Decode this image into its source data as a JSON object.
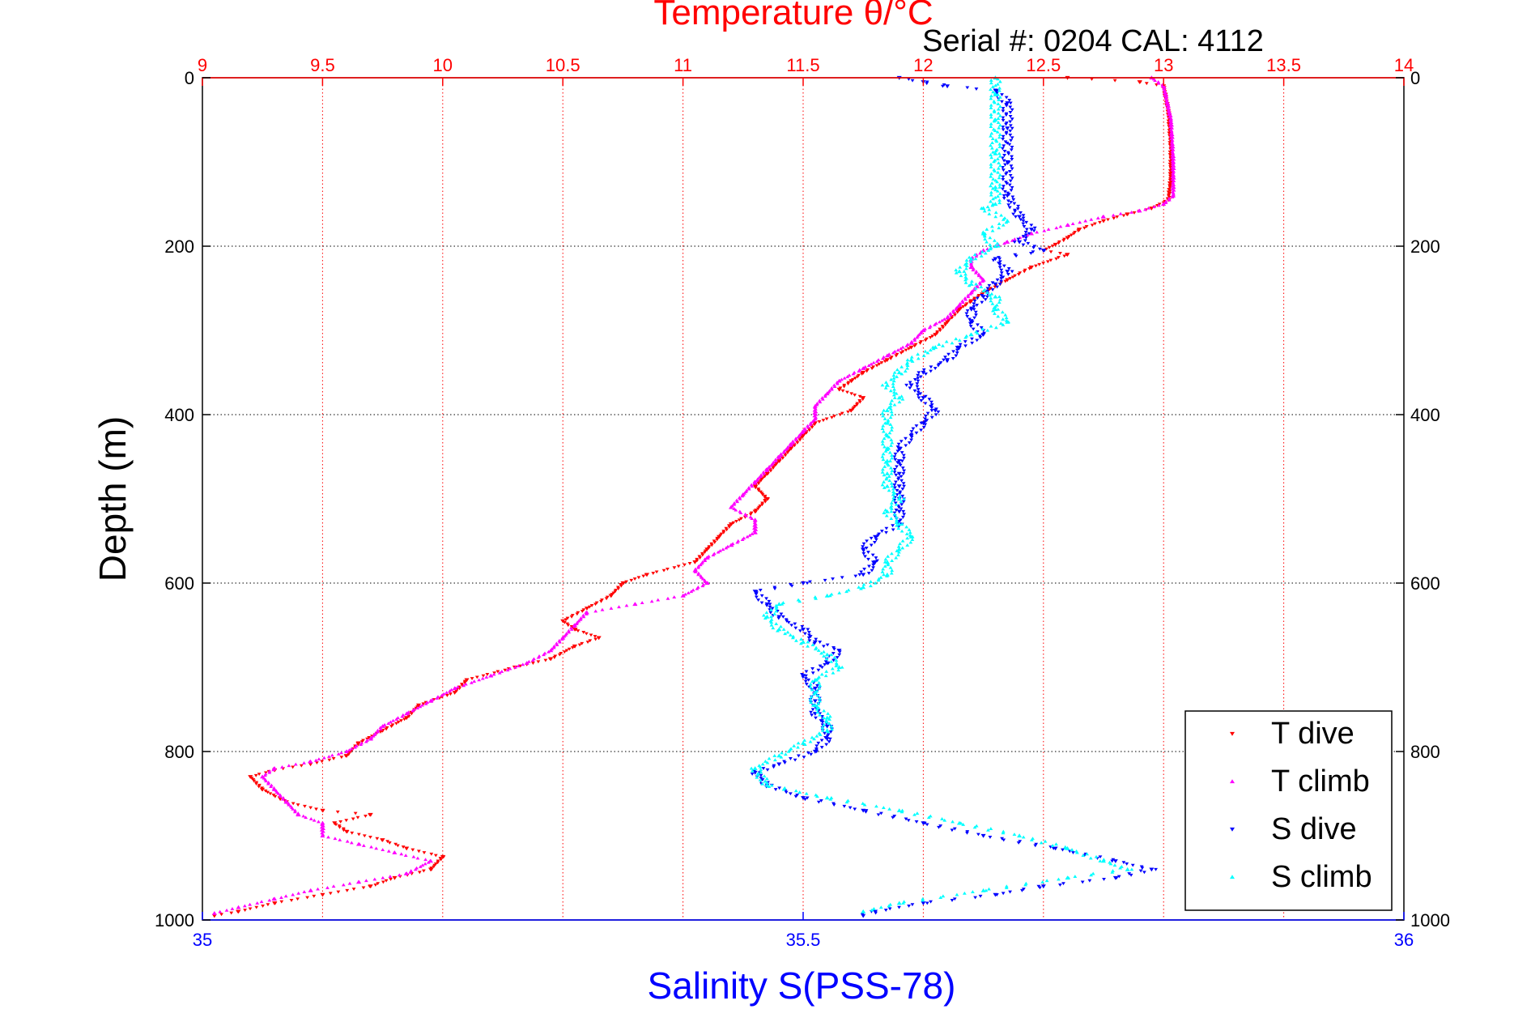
{
  "chart_data": {
    "type": "scatter",
    "title": "Temperature θ/°C",
    "subtitle": "Serial #: 0204  CAL: 4112",
    "ylabel": "Depth (m)",
    "xlabel_bottom": "Salinity S(PSS-78)",
    "ylim": [
      1000,
      0
    ],
    "y_reversed": true,
    "y_ticks": [
      0,
      200,
      400,
      600,
      800,
      1000
    ],
    "x_top": {
      "label": "Temperature θ/°C",
      "lim": [
        9,
        14
      ],
      "ticks": [
        9,
        9.5,
        10,
        10.5,
        11,
        11.5,
        12,
        12.5,
        13,
        13.5,
        14
      ],
      "color": "#ff0000"
    },
    "x_bottom": {
      "label": "Salinity S(PSS-78)",
      "lim": [
        35,
        36
      ],
      "ticks": [
        35,
        35.5,
        36
      ],
      "color": "#0000ff"
    },
    "grid": true,
    "legend_position": "bottom-right",
    "series": [
      {
        "name": "T dive",
        "axis": "temperature",
        "color": "#ff0000",
        "marker": "triangle-down",
        "points": [
          [
            12.6,
            0
          ],
          [
            12.9,
            5
          ],
          [
            13.0,
            10
          ],
          [
            13.02,
            40
          ],
          [
            13.03,
            80
          ],
          [
            13.03,
            120
          ],
          [
            13.02,
            145
          ],
          [
            12.95,
            155
          ],
          [
            12.85,
            162
          ],
          [
            12.75,
            170
          ],
          [
            12.65,
            180
          ],
          [
            12.6,
            190
          ],
          [
            12.55,
            198
          ],
          [
            12.5,
            205
          ],
          [
            12.6,
            210
          ],
          [
            12.45,
            225
          ],
          [
            12.35,
            240
          ],
          [
            12.25,
            255
          ],
          [
            12.2,
            265
          ],
          [
            12.15,
            275
          ],
          [
            12.1,
            290
          ],
          [
            12.05,
            305
          ],
          [
            11.95,
            320
          ],
          [
            11.85,
            335
          ],
          [
            11.75,
            350
          ],
          [
            11.7,
            360
          ],
          [
            11.65,
            370
          ],
          [
            11.75,
            380
          ],
          [
            11.7,
            395
          ],
          [
            11.55,
            410
          ],
          [
            11.5,
            425
          ],
          [
            11.45,
            440
          ],
          [
            11.4,
            455
          ],
          [
            11.35,
            470
          ],
          [
            11.3,
            485
          ],
          [
            11.35,
            500
          ],
          [
            11.3,
            515
          ],
          [
            11.2,
            530
          ],
          [
            11.15,
            545
          ],
          [
            11.1,
            560
          ],
          [
            11.05,
            575
          ],
          [
            10.85,
            590
          ],
          [
            10.75,
            600
          ],
          [
            10.7,
            615
          ],
          [
            10.6,
            630
          ],
          [
            10.5,
            645
          ],
          [
            10.55,
            655
          ],
          [
            10.65,
            665
          ],
          [
            10.55,
            675
          ],
          [
            10.45,
            690
          ],
          [
            10.3,
            700
          ],
          [
            10.1,
            715
          ],
          [
            10.05,
            730
          ],
          [
            9.9,
            745
          ],
          [
            9.85,
            760
          ],
          [
            9.75,
            775
          ],
          [
            9.65,
            790
          ],
          [
            9.6,
            805
          ],
          [
            9.45,
            815
          ],
          [
            9.3,
            822
          ],
          [
            9.2,
            830
          ],
          [
            9.25,
            845
          ],
          [
            9.35,
            860
          ],
          [
            9.5,
            870
          ],
          [
            9.7,
            875
          ],
          [
            9.55,
            885
          ],
          [
            9.6,
            895
          ],
          [
            9.75,
            905
          ],
          [
            9.85,
            915
          ],
          [
            10.0,
            925
          ],
          [
            9.95,
            940
          ],
          [
            9.8,
            950
          ],
          [
            9.7,
            960
          ],
          [
            9.5,
            970
          ],
          [
            9.3,
            980
          ],
          [
            9.15,
            990
          ],
          [
            9.05,
            995
          ]
        ]
      },
      {
        "name": "T climb",
        "axis": "temperature",
        "color": "#ff00ff",
        "marker": "triangle-up",
        "points": [
          [
            12.95,
            0
          ],
          [
            13.0,
            10
          ],
          [
            13.03,
            50
          ],
          [
            13.04,
            100
          ],
          [
            13.04,
            140
          ],
          [
            13.0,
            150
          ],
          [
            12.9,
            158
          ],
          [
            12.75,
            165
          ],
          [
            12.6,
            175
          ],
          [
            12.45,
            185
          ],
          [
            12.35,
            195
          ],
          [
            12.25,
            205
          ],
          [
            12.2,
            215
          ],
          [
            12.2,
            225
          ],
          [
            12.25,
            240
          ],
          [
            12.2,
            255
          ],
          [
            12.15,
            270
          ],
          [
            12.1,
            285
          ],
          [
            12.0,
            300
          ],
          [
            11.95,
            315
          ],
          [
            11.85,
            330
          ],
          [
            11.75,
            345
          ],
          [
            11.65,
            360
          ],
          [
            11.6,
            375
          ],
          [
            11.55,
            390
          ],
          [
            11.55,
            405
          ],
          [
            11.5,
            420
          ],
          [
            11.45,
            435
          ],
          [
            11.4,
            450
          ],
          [
            11.35,
            465
          ],
          [
            11.3,
            480
          ],
          [
            11.25,
            495
          ],
          [
            11.2,
            510
          ],
          [
            11.3,
            525
          ],
          [
            11.3,
            540
          ],
          [
            11.2,
            555
          ],
          [
            11.1,
            570
          ],
          [
            11.05,
            585
          ],
          [
            11.1,
            600
          ],
          [
            11.0,
            615
          ],
          [
            10.8,
            625
          ],
          [
            10.6,
            635
          ],
          [
            10.55,
            650
          ],
          [
            10.5,
            665
          ],
          [
            10.45,
            680
          ],
          [
            10.35,
            695
          ],
          [
            10.2,
            710
          ],
          [
            10.05,
            725
          ],
          [
            9.95,
            740
          ],
          [
            9.85,
            755
          ],
          [
            9.75,
            770
          ],
          [
            9.7,
            785
          ],
          [
            9.6,
            800
          ],
          [
            9.45,
            812
          ],
          [
            9.3,
            820
          ],
          [
            9.25,
            830
          ],
          [
            9.3,
            845
          ],
          [
            9.35,
            860
          ],
          [
            9.4,
            875
          ],
          [
            9.5,
            885
          ],
          [
            9.5,
            900
          ],
          [
            9.65,
            910
          ],
          [
            9.8,
            920
          ],
          [
            9.95,
            930
          ],
          [
            9.85,
            945
          ],
          [
            9.65,
            955
          ],
          [
            9.45,
            965
          ],
          [
            9.3,
            975
          ],
          [
            9.15,
            985
          ],
          [
            9.05,
            992
          ]
        ]
      },
      {
        "name": "S dive",
        "axis": "salinity",
        "color": "#0000ff",
        "marker": "triangle-down",
        "points": [
          [
            35.58,
            0
          ],
          [
            35.6,
            5
          ],
          [
            35.62,
            10
          ],
          [
            35.66,
            15
          ],
          [
            35.67,
            30
          ],
          [
            35.67,
            60
          ],
          [
            35.67,
            100
          ],
          [
            35.67,
            140
          ],
          [
            35.68,
            165
          ],
          [
            35.69,
            180
          ],
          [
            35.68,
            195
          ],
          [
            35.7,
            205
          ],
          [
            35.66,
            215
          ],
          [
            35.67,
            230
          ],
          [
            35.66,
            245
          ],
          [
            35.65,
            260
          ],
          [
            35.64,
            275
          ],
          [
            35.64,
            290
          ],
          [
            35.65,
            305
          ],
          [
            35.63,
            320
          ],
          [
            35.62,
            335
          ],
          [
            35.6,
            350
          ],
          [
            35.59,
            365
          ],
          [
            35.6,
            380
          ],
          [
            35.61,
            395
          ],
          [
            35.6,
            410
          ],
          [
            35.59,
            425
          ],
          [
            35.58,
            440
          ],
          [
            35.58,
            455
          ],
          [
            35.58,
            470
          ],
          [
            35.58,
            485
          ],
          [
            35.58,
            500
          ],
          [
            35.58,
            515
          ],
          [
            35.58,
            530
          ],
          [
            35.56,
            545
          ],
          [
            35.55,
            560
          ],
          [
            35.56,
            575
          ],
          [
            35.55,
            590
          ],
          [
            35.5,
            600
          ],
          [
            35.46,
            610
          ],
          [
            35.47,
            625
          ],
          [
            35.48,
            640
          ],
          [
            35.5,
            655
          ],
          [
            35.51,
            670
          ],
          [
            35.53,
            680
          ],
          [
            35.52,
            695
          ],
          [
            35.5,
            710
          ],
          [
            35.51,
            725
          ],
          [
            35.51,
            740
          ],
          [
            35.51,
            755
          ],
          [
            35.52,
            770
          ],
          [
            35.52,
            785
          ],
          [
            35.51,
            800
          ],
          [
            35.48,
            815
          ],
          [
            35.46,
            825
          ],
          [
            35.47,
            840
          ],
          [
            35.5,
            855
          ],
          [
            35.55,
            870
          ],
          [
            35.6,
            885
          ],
          [
            35.65,
            900
          ],
          [
            35.71,
            915
          ],
          [
            35.76,
            930
          ],
          [
            35.79,
            940
          ],
          [
            35.76,
            950
          ],
          [
            35.7,
            960
          ],
          [
            35.66,
            970
          ],
          [
            35.6,
            980
          ],
          [
            35.56,
            990
          ],
          [
            35.55,
            995
          ]
        ]
      },
      {
        "name": "S climb",
        "axis": "salinity",
        "color": "#00ffff",
        "marker": "triangle-up",
        "points": [
          [
            35.66,
            0
          ],
          [
            35.66,
            20
          ],
          [
            35.66,
            50
          ],
          [
            35.66,
            90
          ],
          [
            35.66,
            130
          ],
          [
            35.66,
            150
          ],
          [
            35.65,
            155
          ],
          [
            35.67,
            170
          ],
          [
            35.65,
            185
          ],
          [
            35.66,
            200
          ],
          [
            35.64,
            215
          ],
          [
            35.63,
            230
          ],
          [
            35.64,
            245
          ],
          [
            35.66,
            260
          ],
          [
            35.66,
            275
          ],
          [
            35.67,
            290
          ],
          [
            35.64,
            305
          ],
          [
            35.61,
            320
          ],
          [
            35.59,
            335
          ],
          [
            35.58,
            350
          ],
          [
            35.57,
            365
          ],
          [
            35.58,
            380
          ],
          [
            35.57,
            395
          ],
          [
            35.57,
            410
          ],
          [
            35.57,
            425
          ],
          [
            35.57,
            440
          ],
          [
            35.57,
            455
          ],
          [
            35.57,
            470
          ],
          [
            35.57,
            485
          ],
          [
            35.58,
            500
          ],
          [
            35.57,
            515
          ],
          [
            35.58,
            530
          ],
          [
            35.59,
            545
          ],
          [
            35.58,
            560
          ],
          [
            35.57,
            575
          ],
          [
            35.57,
            590
          ],
          [
            35.55,
            605
          ],
          [
            35.52,
            615
          ],
          [
            35.48,
            625
          ],
          [
            35.47,
            640
          ],
          [
            35.48,
            655
          ],
          [
            35.5,
            670
          ],
          [
            35.52,
            685
          ],
          [
            35.53,
            700
          ],
          [
            35.51,
            715
          ],
          [
            35.51,
            730
          ],
          [
            35.51,
            745
          ],
          [
            35.52,
            760
          ],
          [
            35.52,
            775
          ],
          [
            35.5,
            790
          ],
          [
            35.48,
            805
          ],
          [
            35.46,
            820
          ],
          [
            35.47,
            840
          ],
          [
            35.52,
            855
          ],
          [
            35.58,
            870
          ],
          [
            35.63,
            885
          ],
          [
            35.68,
            900
          ],
          [
            35.72,
            915
          ],
          [
            35.75,
            930
          ],
          [
            35.77,
            940
          ],
          [
            35.72,
            950
          ],
          [
            35.65,
            965
          ],
          [
            35.58,
            980
          ],
          [
            35.55,
            990
          ]
        ]
      }
    ]
  },
  "legend": {
    "items": [
      {
        "label": "T dive",
        "color": "#ff0000"
      },
      {
        "label": "T climb",
        "color": "#ff00ff"
      },
      {
        "label": "S dive",
        "color": "#0000ff"
      },
      {
        "label": "S climb",
        "color": "#00ffff"
      }
    ]
  }
}
